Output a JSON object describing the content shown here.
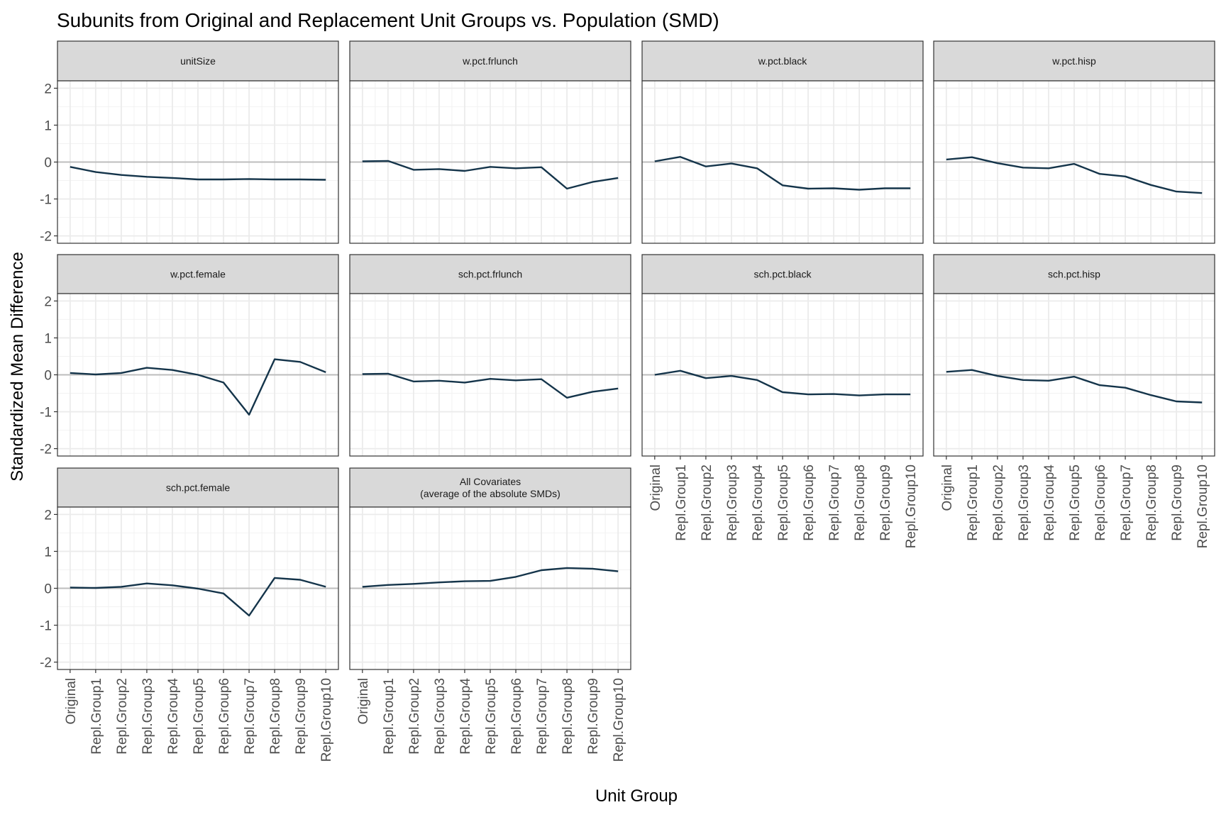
{
  "chart_data": {
    "type": "line",
    "title": "Subunits from Original and Replacement Unit Groups vs. Population (SMD)",
    "xlabel": "Unit Group",
    "ylabel": "Standardized Mean Difference",
    "categories": [
      "Original",
      "Repl.Group1",
      "Repl.Group2",
      "Repl.Group3",
      "Repl.Group4",
      "Repl.Group5",
      "Repl.Group6",
      "Repl.Group7",
      "Repl.Group8",
      "Repl.Group9",
      "Repl.Group10"
    ],
    "yticks": [
      2,
      1,
      0,
      -1,
      -2
    ],
    "ylim": [
      -2.2,
      2.2
    ],
    "grid": true,
    "zero_line": true,
    "line_color": "#14344a",
    "panels": [
      {
        "name": "unitSize",
        "values": [
          -0.13,
          -0.27,
          -0.35,
          -0.4,
          -0.43,
          -0.47,
          -0.47,
          -0.46,
          -0.47,
          -0.47,
          -0.48
        ]
      },
      {
        "name": "w.pct.frlunch",
        "values": [
          0.02,
          0.03,
          -0.21,
          -0.19,
          -0.24,
          -0.13,
          -0.17,
          -0.14,
          -0.72,
          -0.54,
          -0.43
        ]
      },
      {
        "name": "w.pct.black",
        "values": [
          0.02,
          0.14,
          -0.12,
          -0.04,
          -0.17,
          -0.63,
          -0.72,
          -0.71,
          -0.75,
          -0.71,
          -0.71
        ]
      },
      {
        "name": "w.pct.hisp",
        "values": [
          0.07,
          0.13,
          -0.03,
          -0.15,
          -0.17,
          -0.05,
          -0.32,
          -0.39,
          -0.62,
          -0.8,
          -0.84
        ]
      },
      {
        "name": "w.pct.female",
        "values": [
          0.05,
          0.01,
          0.05,
          0.19,
          0.13,
          0.0,
          -0.21,
          -1.08,
          0.42,
          0.35,
          0.07
        ]
      },
      {
        "name": "sch.pct.frlunch",
        "values": [
          0.02,
          0.03,
          -0.18,
          -0.16,
          -0.21,
          -0.11,
          -0.15,
          -0.12,
          -0.62,
          -0.46,
          -0.37
        ]
      },
      {
        "name": "sch.pct.black",
        "values": [
          0.0,
          0.11,
          -0.09,
          -0.03,
          -0.14,
          -0.47,
          -0.53,
          -0.52,
          -0.56,
          -0.53,
          -0.53
        ]
      },
      {
        "name": "sch.pct.hisp",
        "values": [
          0.08,
          0.13,
          -0.03,
          -0.14,
          -0.16,
          -0.05,
          -0.28,
          -0.35,
          -0.55,
          -0.72,
          -0.75
        ]
      },
      {
        "name": "sch.pct.female",
        "values": [
          0.02,
          0.01,
          0.04,
          0.13,
          0.08,
          -0.01,
          -0.14,
          -0.74,
          0.28,
          0.23,
          0.04
        ]
      },
      {
        "name": [
          "All Covariates",
          "(average of the absolute SMDs)"
        ],
        "values": [
          0.04,
          0.09,
          0.12,
          0.16,
          0.19,
          0.2,
          0.31,
          0.49,
          0.55,
          0.53,
          0.46
        ]
      }
    ]
  }
}
